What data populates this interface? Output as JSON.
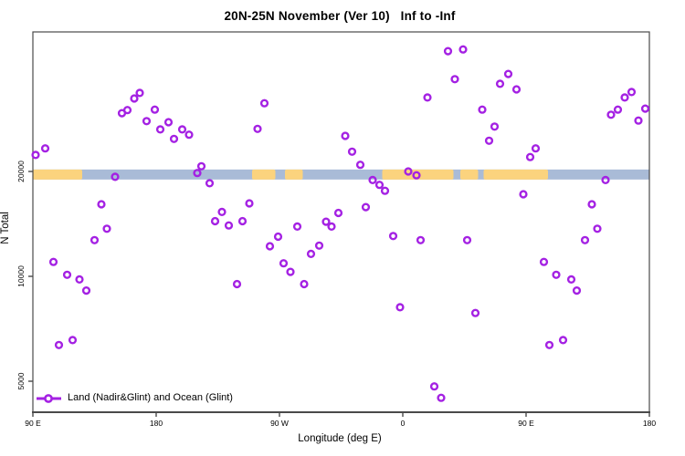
{
  "title": "20N-25N November (Ver 10)   Inf to -Inf",
  "legend": {
    "label": "Land (Nadir&Glint) and Ocean (Glint)"
  },
  "colors": {
    "marker": "#A421E3",
    "land": "#FBD37E",
    "ocean": "#A9BBD7",
    "axis": "#4a4a4a",
    "text": "#000000"
  },
  "chart_data": {
    "type": "scatter",
    "title": "20N-25N November (Ver 10)   Inf to -Inf",
    "xlabel": "Longitude (deg E)",
    "ylabel": "N Total",
    "legend_entries": [
      "Land (Nadir&Glint) and Ocean (Glint)"
    ],
    "legend_position": "bottom-left inside",
    "grid": false,
    "x_axis": {
      "type": "linear",
      "note": "longitude wraps eastward from 90E through dateline back to 180",
      "range": [
        90,
        540
      ],
      "ticks": [
        {
          "value": 90,
          "label": "90 E"
        },
        {
          "value": 180,
          "label": "180"
        },
        {
          "value": 270,
          "label": "90 W"
        },
        {
          "value": 360,
          "label": "0"
        },
        {
          "value": 450,
          "label": "90 E"
        },
        {
          "value": 540,
          "label": "180"
        }
      ]
    },
    "y_axis": {
      "type": "log",
      "range": [
        4070,
        50500
      ],
      "ticks": [
        {
          "value": 5000,
          "label": "5000"
        },
        {
          "value": 10000,
          "label": "10000"
        },
        {
          "value": 20000,
          "label": "20000"
        }
      ]
    },
    "map_band": {
      "description": "world-map strip of the 20N-25N latitude band drawn across the plot near N=19600",
      "center_value": 19600,
      "land_segments_lon": [
        [
          90,
          126
        ],
        [
          250,
          267
        ],
        [
          274,
          287
        ],
        [
          345,
          397
        ],
        [
          402,
          415
        ],
        [
          419,
          466
        ]
      ]
    },
    "points": [
      [
        92,
        22300
      ],
      [
        99,
        23300
      ],
      [
        168,
        33600
      ],
      [
        164,
        32400
      ],
      [
        159,
        30000
      ],
      [
        155,
        29400
      ],
      [
        179,
        30100
      ],
      [
        173,
        27900
      ],
      [
        183,
        26400
      ],
      [
        189,
        27700
      ],
      [
        193,
        24800
      ],
      [
        199,
        26400
      ],
      [
        204,
        25500
      ],
      [
        210,
        19800
      ],
      [
        213,
        20700
      ],
      [
        150,
        19300
      ],
      [
        393,
        44300
      ],
      [
        404,
        44800
      ],
      [
        398,
        36800
      ],
      [
        378,
        32600
      ],
      [
        259,
        31400
      ],
      [
        254,
        26500
      ],
      [
        318,
        25300
      ],
      [
        323,
        22800
      ],
      [
        329,
        20900
      ],
      [
        364,
        20000
      ],
      [
        370,
        19500
      ],
      [
        437,
        38100
      ],
      [
        431,
        35700
      ],
      [
        443,
        34400
      ],
      [
        418,
        30100
      ],
      [
        427,
        26900
      ],
      [
        423,
        24500
      ],
      [
        457,
        23300
      ],
      [
        453,
        22000
      ],
      [
        527,
        33800
      ],
      [
        522,
        32600
      ],
      [
        517,
        30100
      ],
      [
        512,
        29100
      ],
      [
        537,
        30300
      ],
      [
        532,
        28000
      ],
      [
        219,
        18500
      ],
      [
        140,
        16100
      ],
      [
        144,
        13700
      ],
      [
        135,
        12700
      ],
      [
        105,
        11000
      ],
      [
        115,
        10100
      ],
      [
        124,
        9800
      ],
      [
        129,
        9100
      ],
      [
        239,
        9500
      ],
      [
        228,
        15300
      ],
      [
        223,
        14400
      ],
      [
        233,
        14000
      ],
      [
        243,
        14400
      ],
      [
        248,
        16200
      ],
      [
        338,
        18900
      ],
      [
        343,
        18300
      ],
      [
        347,
        17600
      ],
      [
        333,
        15800
      ],
      [
        313,
        15200
      ],
      [
        304,
        14350
      ],
      [
        308,
        13900
      ],
      [
        283,
        13900
      ],
      [
        269,
        13000
      ],
      [
        263,
        12200
      ],
      [
        299,
        12250
      ],
      [
        293,
        11600
      ],
      [
        273,
        10900
      ],
      [
        278,
        10300
      ],
      [
        288,
        9500
      ],
      [
        353,
        13050
      ],
      [
        373,
        12700
      ],
      [
        508,
        18900
      ],
      [
        448,
        17200
      ],
      [
        498,
        16100
      ],
      [
        502,
        13700
      ],
      [
        493,
        12700
      ],
      [
        407,
        12700
      ],
      [
        463,
        11000
      ],
      [
        472,
        10100
      ],
      [
        483,
        9800
      ],
      [
        487,
        9100
      ],
      [
        109,
        6350
      ],
      [
        119,
        6560
      ],
      [
        358,
        8150
      ],
      [
        383,
        4830
      ],
      [
        388,
        4480
      ],
      [
        413,
        7850
      ],
      [
        467,
        6350
      ],
      [
        477,
        6560
      ]
    ]
  }
}
